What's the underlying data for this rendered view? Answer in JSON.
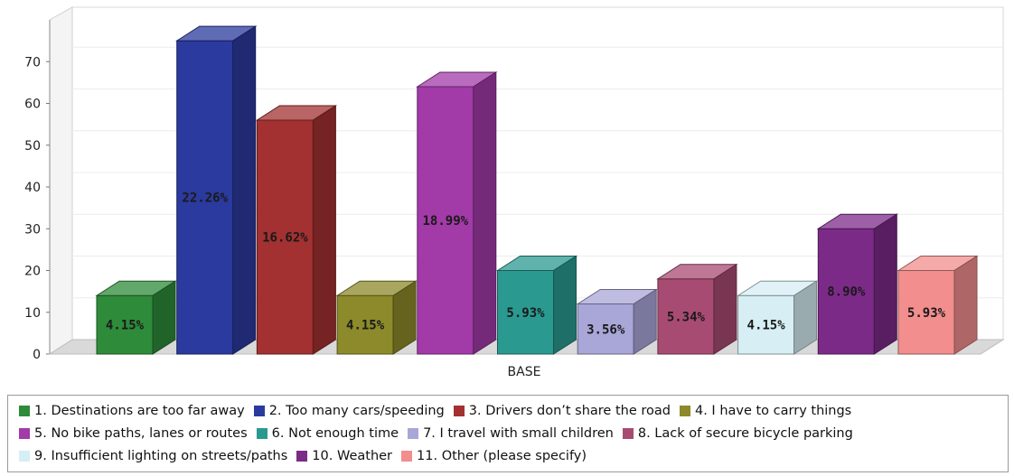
{
  "chart_data": {
    "type": "bar",
    "xlabel": "BASE",
    "ylim": [
      0,
      80
    ],
    "yticks": [
      0,
      10,
      20,
      30,
      40,
      50,
      60,
      70
    ],
    "grid": true,
    "legend_position": "bottom",
    "series": [
      {
        "name": "1. Destinations are too far away",
        "value": 14,
        "label": "4.15%",
        "color": "#2e8b3a"
      },
      {
        "name": "2. Too many cars/speeding",
        "value": 75,
        "label": "22.26%",
        "color": "#2b3a9e"
      },
      {
        "name": "3. Drivers don’t share the road",
        "value": 56,
        "label": "16.62%",
        "color": "#a33131"
      },
      {
        "name": "4. I have to carry things",
        "value": 14,
        "label": "4.15%",
        "color": "#8c8a2a"
      },
      {
        "name": "5. No bike paths, lanes or routes",
        "value": 64,
        "label": "18.99%",
        "color": "#a23aa8"
      },
      {
        "name": "6. Not enough time",
        "value": 20,
        "label": "5.93%",
        "color": "#2a9a90"
      },
      {
        "name": "7. I travel with small children",
        "value": 12,
        "label": "3.56%",
        "color": "#a9a6d8"
      },
      {
        "name": "8. Lack of secure bicycle parking",
        "value": 18,
        "label": "5.34%",
        "color": "#a84b72"
      },
      {
        "name": "9. Insufficient lighting on streets/paths",
        "value": 14,
        "label": "4.15%",
        "color": "#d6eef4"
      },
      {
        "name": "10. Weather",
        "value": 30,
        "label": "8.90%",
        "color": "#7c2a88"
      },
      {
        "name": "11. Other (please specify)",
        "value": 20,
        "label": "5.93%",
        "color": "#f28e8e"
      }
    ]
  },
  "legend": {
    "rows": [
      [
        0,
        1,
        2,
        3
      ],
      [
        4,
        5,
        6,
        7
      ],
      [
        8,
        9,
        10
      ]
    ]
  }
}
